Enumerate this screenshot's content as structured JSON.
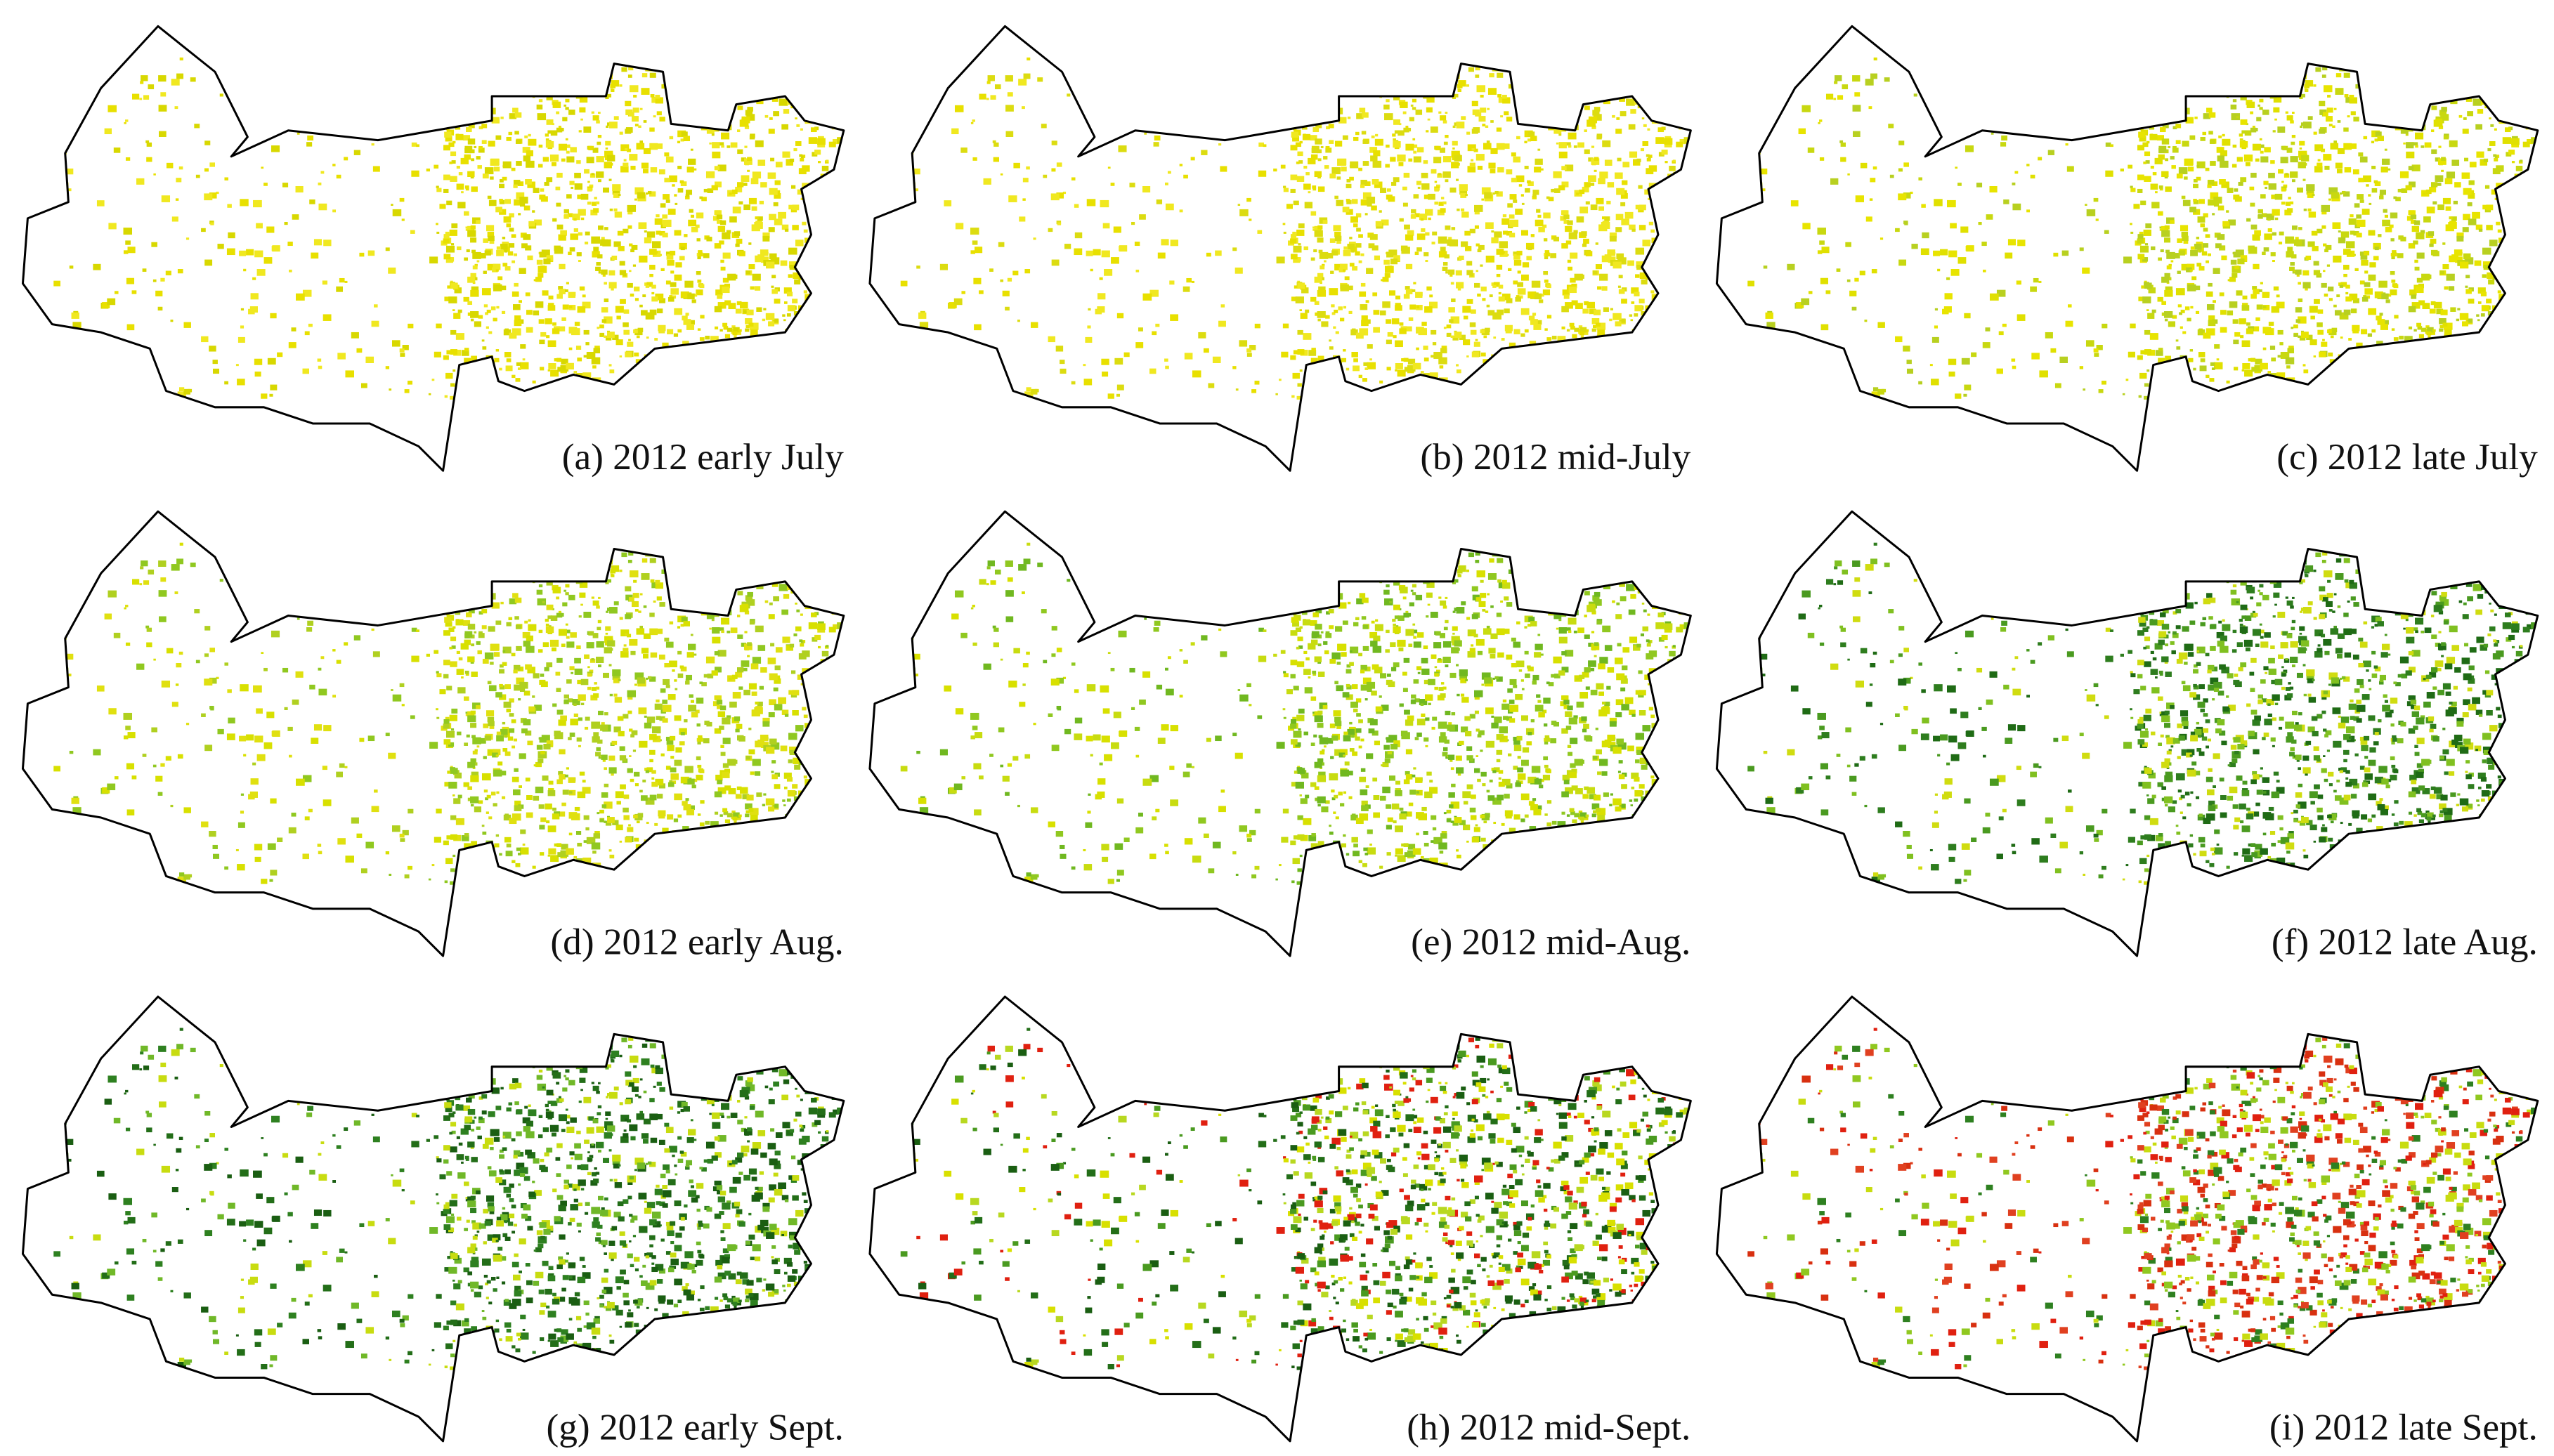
{
  "panels": [
    {
      "label": "(a) 2012 early July"
    },
    {
      "label": "(b) 2012 mid-July"
    },
    {
      "label": "(c) 2012 late July"
    },
    {
      "label": "(d) 2012 early Aug."
    },
    {
      "label": "(e) 2012 mid-Aug."
    },
    {
      "label": "(f) 2012 late Aug."
    },
    {
      "label": "(g) 2012 early Sept."
    },
    {
      "label": "(h) 2012 mid-Sept."
    },
    {
      "label": "(i) 2012 late Sept."
    }
  ]
}
